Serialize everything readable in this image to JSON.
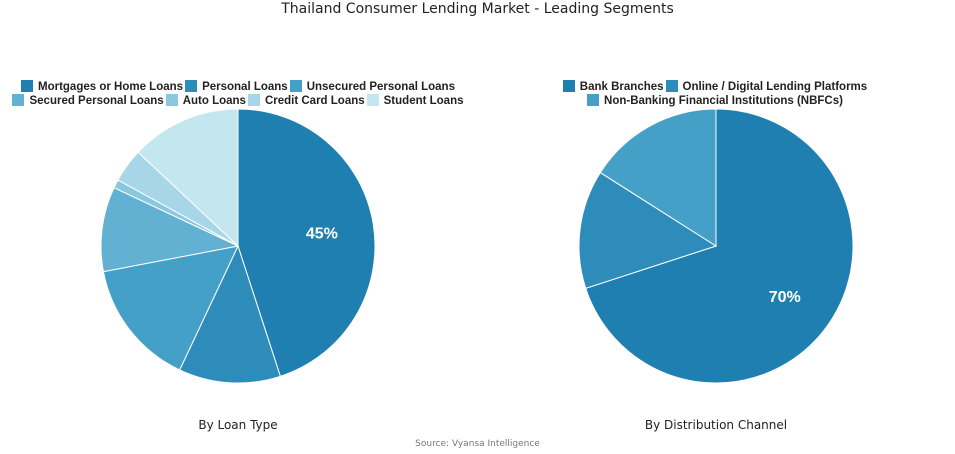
{
  "title": "Thailand Consumer Lending Market - Leading Segments",
  "source": "Source: Vyansa Intelligence",
  "chart_data": [
    {
      "type": "pie",
      "title": "By Loan Type",
      "categories": [
        "Mortgages or Home Loans",
        "Personal Loans",
        "Unsecured Personal Loans",
        "Secured Personal Loans",
        "Auto Loans",
        "Credit Card Loans",
        "Student Loans"
      ],
      "values": [
        45,
        12,
        15,
        10,
        1,
        4,
        13
      ],
      "colors": [
        "#1f7fb0",
        "#2e8cba",
        "#45a0c7",
        "#62b1d3",
        "#88c8e0",
        "#a6d6e7",
        "#c4e7ef"
      ],
      "data_labels": [
        "45%",
        "",
        "",
        "",
        "",
        "",
        ""
      ],
      "legend_position": "top"
    },
    {
      "type": "pie",
      "title": "By Distribution Channel",
      "categories": [
        "Bank Branches",
        "Online / Digital Lending Platforms",
        "Non-Banking Financial Institutions (NBFCs)"
      ],
      "values": [
        70,
        14,
        16
      ],
      "colors": [
        "#1f7fb0",
        "#2e8cba",
        "#45a0c7"
      ],
      "data_labels": [
        "70%",
        "",
        ""
      ],
      "legend_position": "top"
    }
  ]
}
